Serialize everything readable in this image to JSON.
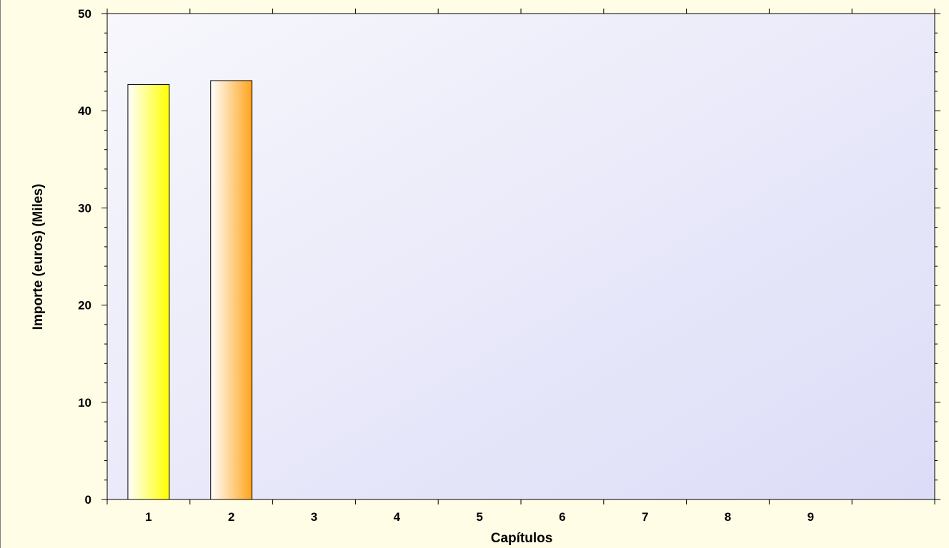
{
  "chart_data": {
    "type": "bar",
    "title": "",
    "xlabel": "Capítulos",
    "ylabel": "Importe (euros) (Miles)",
    "categories": [
      "1",
      "2",
      "3",
      "4",
      "5",
      "6",
      "7",
      "8",
      "9"
    ],
    "values": [
      42.7,
      43.1,
      0,
      0,
      0,
      0,
      0,
      0,
      0
    ],
    "ylim": [
      0,
      50
    ],
    "yticks": [
      "0",
      "10",
      "20",
      "30",
      "40",
      "50"
    ],
    "grid": false,
    "legend": "none",
    "colors": {
      "bar_1": "#ffff00",
      "bar_2": "#ffa41c",
      "plot_bg_top": "#f7f7fc",
      "plot_bg_bottom": "#dcdcf8",
      "page_bg": "#fffde6"
    }
  }
}
